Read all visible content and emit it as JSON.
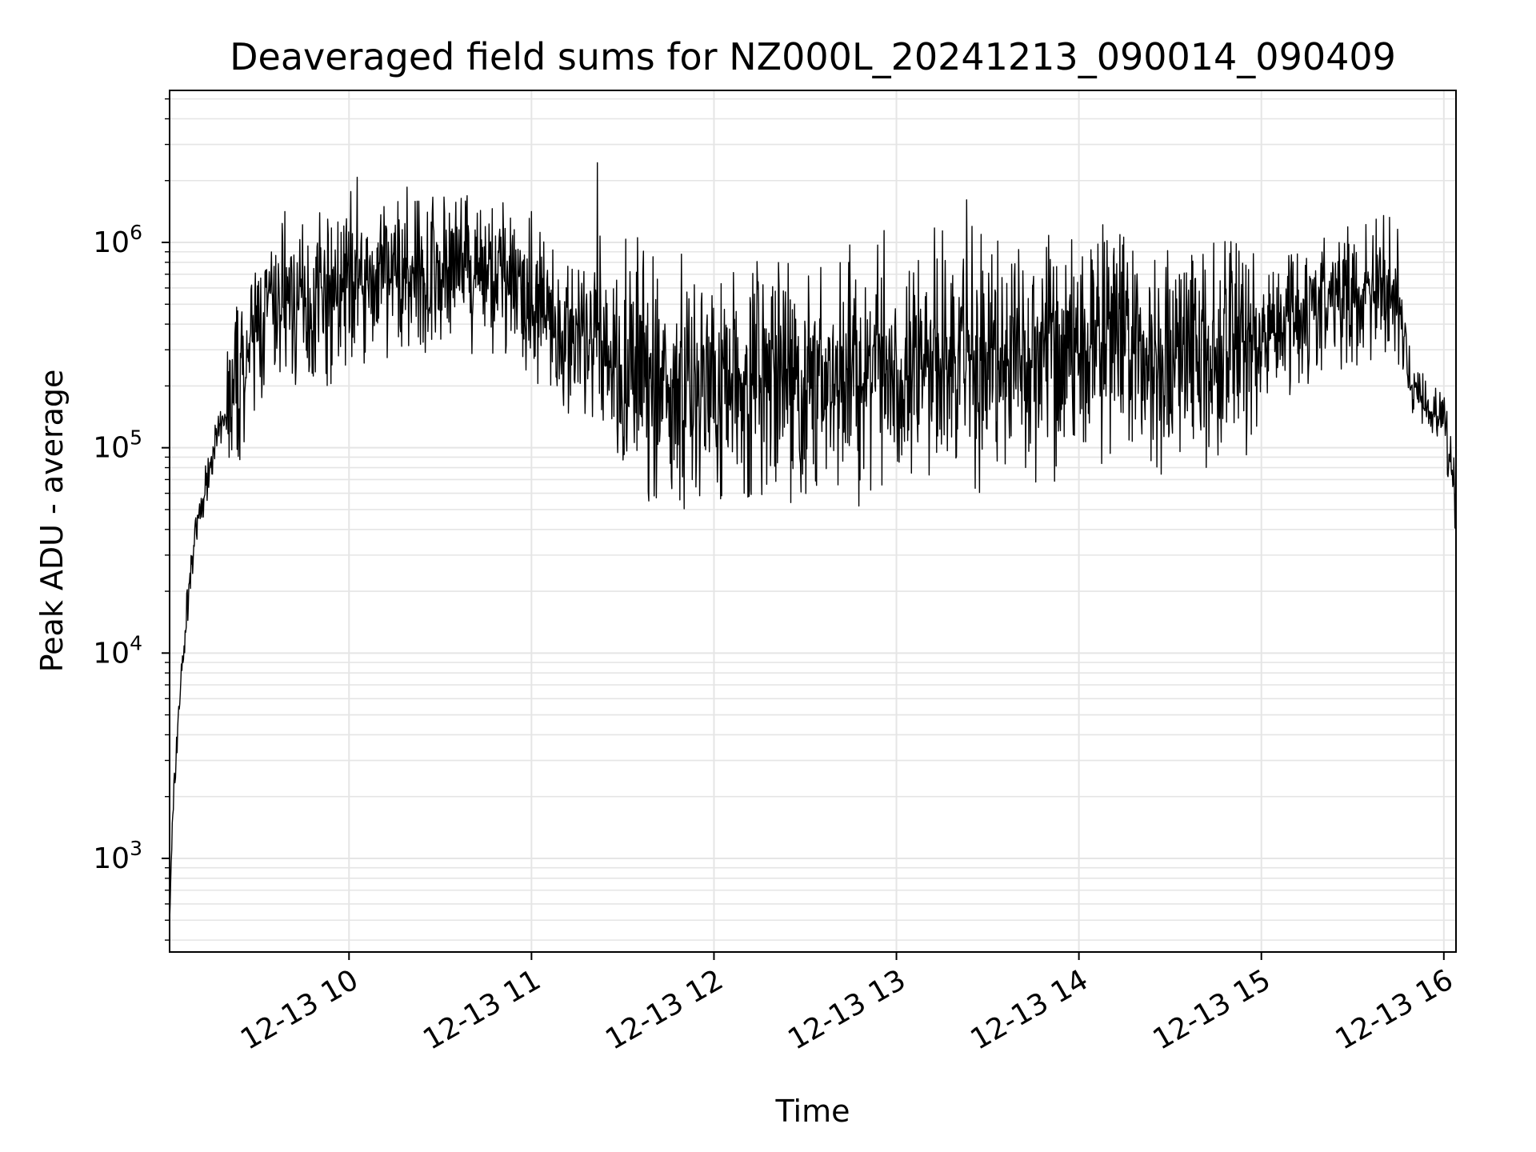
{
  "chart_data": {
    "type": "line",
    "title": "Deaveraged field sums for NZ000L_20241213_090014_090409",
    "xlabel": "Time",
    "ylabel": "Peak ADU - average",
    "y_scale": "log",
    "ylim": [
      350,
      5500000
    ],
    "xlim": [
      "2024-12-13T09:01:00",
      "2024-12-13T16:04:00"
    ],
    "grid": true,
    "grid_color": "#e5e5e5",
    "line_color": "#000000",
    "x_ticks": [
      {
        "value": "2024-12-13T10:00:00",
        "label": "12-13 10"
      },
      {
        "value": "2024-12-13T11:00:00",
        "label": "12-13 11"
      },
      {
        "value": "2024-12-13T12:00:00",
        "label": "12-13 12"
      },
      {
        "value": "2024-12-13T13:00:00",
        "label": "12-13 13"
      },
      {
        "value": "2024-12-13T14:00:00",
        "label": "12-13 14"
      },
      {
        "value": "2024-12-13T15:00:00",
        "label": "12-13 15"
      },
      {
        "value": "2024-12-13T16:00:00",
        "label": "12-13 16"
      }
    ],
    "y_ticks": [
      {
        "value": 1000,
        "base": "10",
        "exp": "3"
      },
      {
        "value": 10000,
        "base": "10",
        "exp": "4"
      },
      {
        "value": 100000,
        "base": "10",
        "exp": "5"
      },
      {
        "value": 1000000,
        "base": "10",
        "exp": "6"
      }
    ],
    "series": [
      {
        "x": [
          "2024-12-13T09:01:00",
          "2024-12-13T09:02:00",
          "2024-12-13T09:03:00",
          "2024-12-13T09:04:00",
          "2024-12-13T09:05:00",
          "2024-12-13T09:06:00",
          "2024-12-13T09:07:00",
          "2024-12-13T09:08:00",
          "2024-12-13T09:09:00",
          "2024-12-13T09:10:00",
          "2024-12-13T09:12:00",
          "2024-12-13T09:14:00",
          "2024-12-13T09:16:00",
          "2024-12-13T09:18:00",
          "2024-12-13T09:20:00",
          "2024-12-13T09:23:00",
          "2024-12-13T09:26:00",
          "2024-12-13T09:30:00",
          "2024-12-13T09:35:00",
          "2024-12-13T09:40:00",
          "2024-12-13T09:45:00",
          "2024-12-13T09:50:00",
          "2024-12-13T09:55:00",
          "2024-12-13T10:00:00",
          "2024-12-13T10:10:00",
          "2024-12-13T10:20:00",
          "2024-12-13T10:30:00",
          "2024-12-13T10:35:00",
          "2024-12-13T10:45:00",
          "2024-12-13T11:00:00",
          "2024-12-13T11:10:00",
          "2024-12-13T11:20:00",
          "2024-12-13T11:30:00",
          "2024-12-13T11:45:00",
          "2024-12-13T12:00:00",
          "2024-12-13T12:15:00",
          "2024-12-13T12:30:00",
          "2024-12-13T12:45:00",
          "2024-12-13T13:00:00",
          "2024-12-13T13:15:00",
          "2024-12-13T13:30:00",
          "2024-12-13T13:45:00",
          "2024-12-13T14:00:00",
          "2024-12-13T14:15:00",
          "2024-12-13T14:30:00",
          "2024-12-13T14:45:00",
          "2024-12-13T15:00:00",
          "2024-12-13T15:10:00",
          "2024-12-13T15:20:00",
          "2024-12-13T15:30:00",
          "2024-12-13T15:40:00",
          "2024-12-13T15:45:00",
          "2024-12-13T15:47:00",
          "2024-12-13T15:50:00",
          "2024-12-13T15:55:00",
          "2024-12-13T16:00:00",
          "2024-12-13T16:02:00",
          "2024-12-13T16:04:00"
        ],
        "y": [
          500,
          1500,
          3000,
          5500,
          8000,
          12000,
          18000,
          25000,
          32000,
          40000,
          55000,
          80000,
          105000,
          125000,
          150000,
          190000,
          260000,
          380000,
          450000,
          480000,
          500000,
          520000,
          550000,
          600000,
          650000,
          700000,
          700000,
          750000,
          650000,
          550000,
          400000,
          300000,
          250000,
          200000,
          220000,
          200000,
          200000,
          230000,
          250000,
          260000,
          280000,
          300000,
          320000,
          300000,
          280000,
          300000,
          350000,
          450000,
          500000,
          560000,
          600000,
          500000,
          300000,
          180000,
          160000,
          150000,
          90000,
          55000
        ]
      }
    ]
  }
}
